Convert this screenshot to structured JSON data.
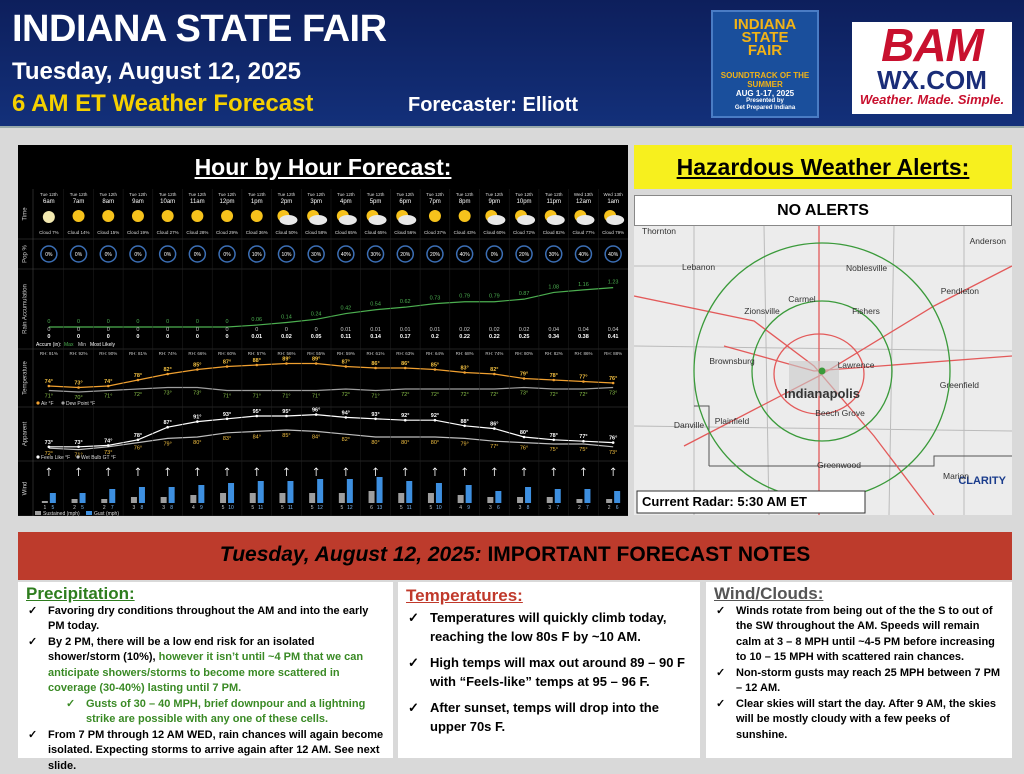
{
  "header": {
    "title": "INDIANA STATE FAIR",
    "date": "Tuesday, August 12, 2025",
    "subtitle": "6 AM ET Weather Forecast",
    "forecaster": "Forecaster: Elliott"
  },
  "fair_logo": {
    "lines": [
      "INDIANA",
      "STATE",
      "FAIR",
      "SOUNDTRACK OF THE SUMMER",
      "AUG 1-17, 2025",
      "Presented by",
      "Get Prepared Indiana"
    ]
  },
  "bam_logo": {
    "name": "BAM",
    "site": "WX.COM",
    "tagline": "Weather. Made. Simple."
  },
  "hourly": {
    "title": "Hour by Hour Forecast:",
    "row_labels": [
      "Time",
      "Pop %",
      "Rain Accumulation",
      "Temperature",
      "Apparent",
      "Wind"
    ],
    "days": [
      "Tue 12th",
      "Tue 12th",
      "Tue 12th",
      "Tue 12th",
      "Tue 12th",
      "Tue 12th",
      "Tue 12th",
      "Tue 12th",
      "Tue 12th",
      "Tue 12th",
      "Tue 12th",
      "Tue 12th",
      "Tue 12th",
      "Tue 12th",
      "Tue 12th",
      "Tue 12th",
      "Tue 12th",
      "Tue 12th",
      "Wed 13th",
      "Wed 13th"
    ],
    "hours": [
      "6am",
      "7am",
      "8am",
      "9am",
      "10am",
      "11am",
      "12pm",
      "1pm",
      "2pm",
      "3pm",
      "4pm",
      "5pm",
      "6pm",
      "7pm",
      "8pm",
      "9pm",
      "10pm",
      "11pm",
      "12am",
      "1am"
    ],
    "cloud": [
      "Cloud 7%",
      "Cloud 14%",
      "Cloud 15%",
      "Cloud 19%",
      "Cloud 27%",
      "Cloud 28%",
      "Cloud 29%",
      "Cloud 36%",
      "Cloud 50%",
      "Cloud 58%",
      "Cloud 65%",
      "Cloud 65%",
      "Cloud 56%",
      "Cloud 37%",
      "Cloud 43%",
      "Cloud 60%",
      "Cloud 72%",
      "Cloud 82%",
      "Cloud 77%",
      "Cloud 79%"
    ],
    "pop": [
      "0%",
      "0%",
      "0%",
      "0%",
      "0%",
      "0%",
      "0%",
      "10%",
      "10%",
      "30%",
      "40%",
      "30%",
      "20%",
      "20%",
      "40%",
      "0%",
      "20%",
      "30%",
      "40%",
      "40%"
    ],
    "rain_max": [
      0,
      0,
      0,
      0,
      0,
      0,
      0,
      0.06,
      0.14,
      0.24,
      0.42,
      0.54,
      0.62,
      0.73,
      0.79,
      0.79,
      0.87,
      1.08,
      1.16,
      1.23
    ],
    "rain_min": [
      0,
      0,
      0,
      0,
      0,
      0,
      0,
      0,
      0,
      0,
      0.01,
      0.01,
      0.01,
      0.01,
      0.02,
      0.02,
      0.02,
      0.04,
      0.04,
      0.04
    ],
    "rain_likely": [
      0,
      0,
      0,
      0,
      0,
      0,
      0,
      0.01,
      0.02,
      0.05,
      0.11,
      0.14,
      0.17,
      0.2,
      0.22,
      0.22,
      0.25,
      0.34,
      0.38,
      0.41
    ],
    "rain_legend": [
      "Accum (in):",
      "Max",
      "Min",
      "Most Likely"
    ],
    "rh": [
      "RH: 91%",
      "RH: 92%",
      "RH: 90%",
      "RH: 81%",
      "RH: 74%",
      "RH: 66%",
      "RH: 60%",
      "RH: 57%",
      "RH: 56%",
      "RH: 55%",
      "RH: 59%",
      "RH: 61%",
      "RH: 63%",
      "RH: 64%",
      "RH: 68%",
      "RH: 74%",
      "RH: 80%",
      "RH: 82%",
      "RH: 86%",
      "RH: 88%"
    ],
    "temp": [
      74,
      73,
      74,
      78,
      82,
      85,
      87,
      88,
      89,
      89,
      87,
      86,
      86,
      85,
      83,
      82,
      79,
      78,
      77,
      76
    ],
    "temp_labels": [
      "74°",
      "73°",
      "74°",
      "78°",
      "82°",
      "85°",
      "87°",
      "88°",
      "89°",
      "89°",
      "87°",
      "86°",
      "86°",
      "85°",
      "83°",
      "82°",
      "79°",
      "78°",
      "77°",
      "76°"
    ],
    "dew": [
      71,
      70,
      71,
      72,
      73,
      73,
      71,
      71,
      71,
      71,
      72,
      71,
      72,
      72,
      72,
      72,
      73,
      72,
      72,
      73
    ],
    "dew_labels": [
      "71°",
      "70°",
      "71°",
      "72°",
      "73°",
      "73°",
      "71°",
      "71°",
      "71°",
      "71°",
      "72°",
      "71°",
      "72°",
      "72°",
      "72°",
      "72°",
      "73°",
      "72°",
      "72°",
      "73°"
    ],
    "temp_legend": [
      "Air °F",
      "Dew Point °F"
    ],
    "feels": [
      73,
      73,
      74,
      78,
      87,
      91,
      93,
      95,
      95,
      96,
      94,
      93,
      92,
      92,
      88,
      86,
      80,
      78,
      77,
      76
    ],
    "feels_labels": [
      "73°",
      "73°",
      "74°",
      "78°",
      "87°",
      "91°",
      "93°",
      "95°",
      "95°",
      "96°",
      "94°",
      "93°",
      "92°",
      "92°",
      "88°",
      "86°",
      "80°",
      "78°",
      "77°",
      "76°"
    ],
    "wetbulb": [
      72,
      71,
      73,
      76,
      79,
      80,
      83,
      84,
      85,
      84,
      82,
      80,
      80,
      80,
      79,
      77,
      76,
      75,
      75,
      73
    ],
    "wetbulb_labels": [
      "72°",
      "71°",
      "73°",
      "76°",
      "79°",
      "80°",
      "83°",
      "84°",
      "85°",
      "84°",
      "82°",
      "80°",
      "80°",
      "80°",
      "79°",
      "77°",
      "76°",
      "75°",
      "75°",
      "73°"
    ],
    "apparent_legend": [
      "Feels Like °F",
      "Wet Bulb GT °F"
    ],
    "wind_sustained": [
      1,
      2,
      2,
      3,
      3,
      4,
      5,
      5,
      5,
      5,
      5,
      6,
      5,
      5,
      4,
      3,
      3,
      3,
      2,
      2
    ],
    "wind_gust": [
      5,
      5,
      7,
      8,
      8,
      9,
      10,
      11,
      11,
      12,
      12,
      13,
      11,
      10,
      9,
      6,
      8,
      7,
      7,
      6
    ],
    "wind_legend": [
      "Sustained (mph)",
      "Gust (mph)"
    ]
  },
  "alerts": {
    "title": "Hazardous Weather Alerts:",
    "status": "NO ALERTS",
    "radar_caption": "Current Radar: 5:30 AM ET",
    "brand": "CLARITY",
    "cities": [
      "Thornton",
      "Anderson",
      "Lebanon",
      "Noblesville",
      "Pendleton",
      "Carmel",
      "Zionsville",
      "Fishers",
      "Brownsburg",
      "Lawrence",
      "Indianapolis",
      "Greenfield",
      "Danville",
      "Beech Grove",
      "Plainfield",
      "Greenwood",
      "Marion"
    ]
  },
  "notes": {
    "banner": {
      "date": "Tuesday, August 12, 2025:",
      "title": "IMPORTANT FORECAST NOTES"
    },
    "precipitation": {
      "heading": "Precipitation:",
      "item1": "Favoring dry conditions throughout the AM and into the early PM today.",
      "item2a": "By 2 PM, there will be a low end risk for an isolated shower/storm (10%), ",
      "item2b": "however it isn’t until ~4 PM that we can anticipate showers/storms to become more scattered in coverage (30-40%) lasting until 7 PM.",
      "sub": "Gusts of 30 – 40 MPH, brief downpour and a lightning strike are possible with any one of these cells.",
      "item3": "From 7 PM through 12 AM WED, rain chances will again become isolated. Expecting storms to arrive again after 12 AM. See next slide."
    },
    "temperatures": {
      "heading": "Temperatures:",
      "items": [
        "Temperatures will quickly climb today, reaching the low 80s F by ~10 AM.",
        "High temps will max out around 89 – 90 F with “Feels-like” temps at 95 – 96 F.",
        "After sunset, temps will drop into the upper 70s F."
      ]
    },
    "wind": {
      "heading": "Wind/Clouds:",
      "items": [
        "Winds rotate from being out of the the S to out of the SW throughout the AM. Speeds will remain calm at 3 – 8 MPH until ~4-5 PM before increasing to 10 – 15 MPH with scattered rain chances.",
        "Non-storm gusts may reach 25 MPH between 7 PM – 12 AM.",
        "Clear skies will start the day. After 9 AM, the skies will be mostly cloudy with a few peeks of sunshine."
      ]
    }
  }
}
